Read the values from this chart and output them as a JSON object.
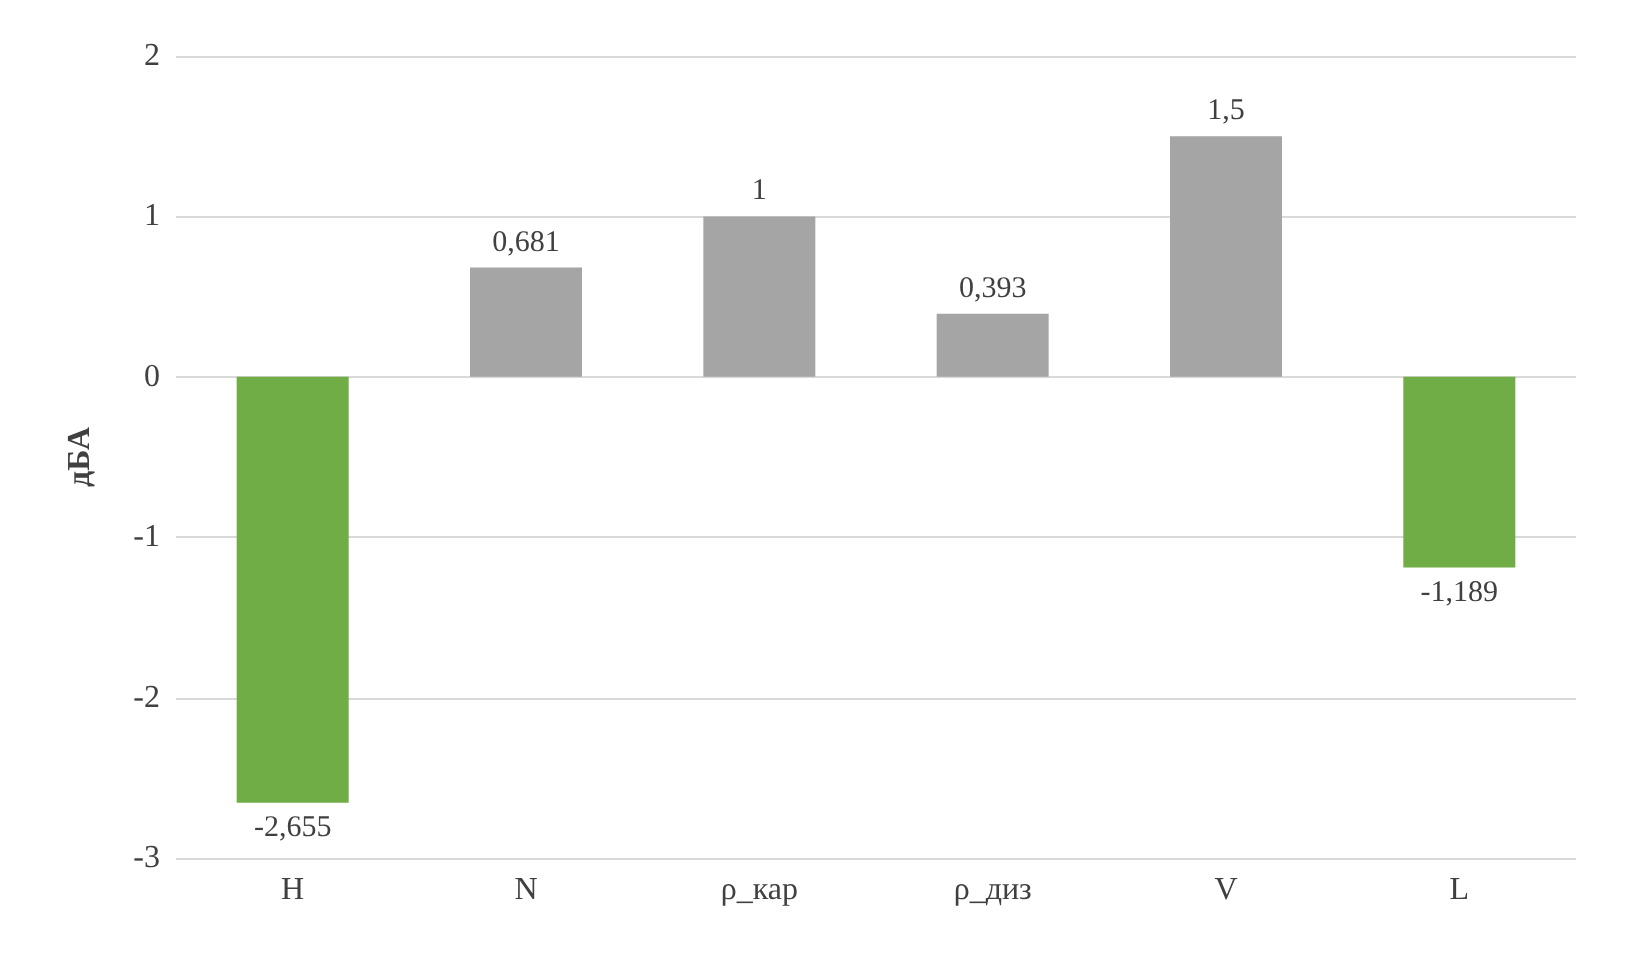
{
  "chart_data": {
    "type": "bar",
    "ylabel": "дБА",
    "categories": [
      "H",
      "N",
      "ρ_кар",
      "ρ_диз",
      "V",
      "L"
    ],
    "values": [
      -2.655,
      0.681,
      1,
      0.393,
      1.5,
      -1.189
    ],
    "value_labels": [
      "-2,655",
      "0,681",
      "1",
      "0,393",
      "1,5",
      "-1,189"
    ],
    "colors": [
      "#70ad47",
      "#a5a5a5",
      "#a5a5a5",
      "#a5a5a5",
      "#a5a5a5",
      "#70ad47"
    ],
    "ylim": [
      -3,
      2
    ],
    "yticks": [
      -3,
      -2,
      -1,
      0,
      1,
      2
    ],
    "grid": "y"
  }
}
